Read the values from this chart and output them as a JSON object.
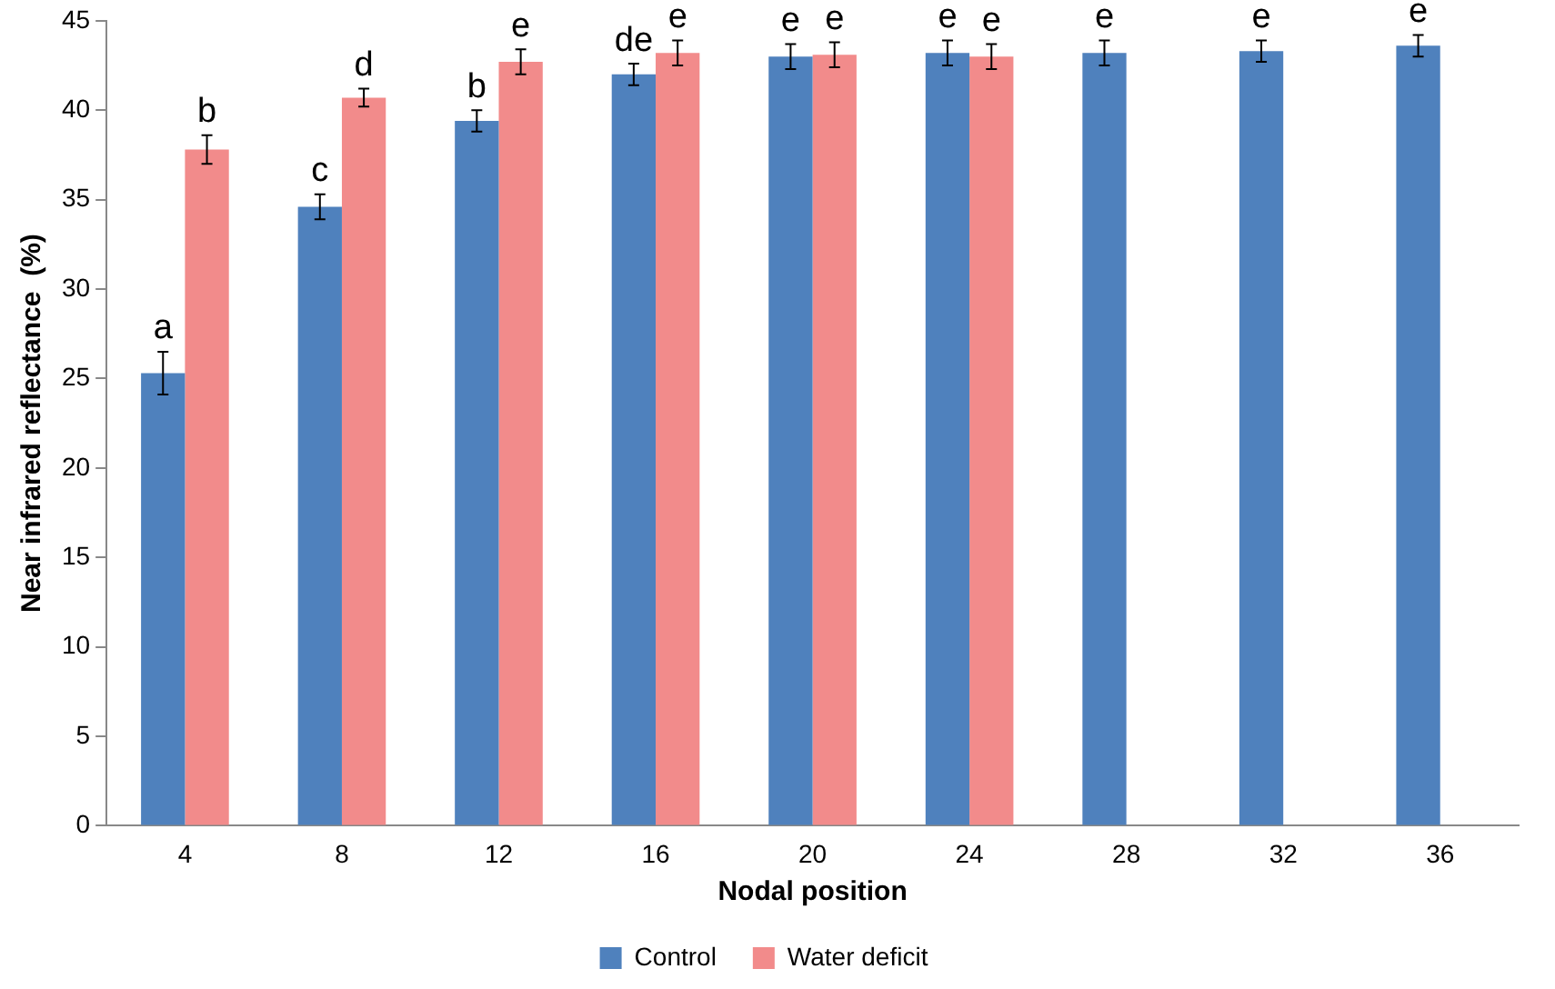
{
  "chart_data": {
    "type": "bar",
    "xlabel": "Nodal position",
    "ylabel": "Near infrared reflectance  (%)",
    "categories": [
      "4",
      "8",
      "12",
      "16",
      "20",
      "24",
      "28",
      "32",
      "36"
    ],
    "series": [
      {
        "name": "Control",
        "color": "#4f81bd",
        "values": [
          25.3,
          34.6,
          39.4,
          42.0,
          43.0,
          43.2,
          43.2,
          43.3,
          43.6
        ],
        "errors": [
          1.2,
          0.7,
          0.6,
          0.6,
          0.7,
          0.7,
          0.7,
          0.6,
          0.6
        ]
      },
      {
        "name": "Water deficit",
        "color": "#f28b8b",
        "values": [
          37.8,
          40.7,
          42.7,
          43.2,
          43.1,
          43.0,
          null,
          null,
          null
        ],
        "errors": [
          0.8,
          0.5,
          0.7,
          0.7,
          0.7,
          0.7,
          null,
          null,
          null
        ]
      }
    ],
    "ylim": [
      0,
      45
    ],
    "yticks": [
      0,
      5,
      10,
      15,
      20,
      25,
      30,
      35,
      40,
      45
    ],
    "grid": false,
    "legend": "bottom",
    "annotations": [
      {
        "text": "a",
        "x": "4",
        "y": 25.3
      },
      {
        "text": "b",
        "x": "4",
        "y": 37.8
      },
      {
        "text": "c",
        "x": "8",
        "y": 34.6
      },
      {
        "text": "d",
        "x": "8",
        "y": 40.7
      },
      {
        "text": "b",
        "x": "12",
        "y": 39.4
      },
      {
        "text": "e",
        "x": "12",
        "y": 42.7
      },
      {
        "text": "de",
        "x": "16",
        "y": 42.0
      },
      {
        "text": "e",
        "x": "16",
        "y": 43.2
      },
      {
        "text": "e",
        "x": "20",
        "y": 43.0
      },
      {
        "text": "e",
        "x": "20",
        "y": 43.1
      },
      {
        "text": "e",
        "x": "24",
        "y": 43.2
      },
      {
        "text": "e",
        "x": "24",
        "y": 43.0
      },
      {
        "text": "e",
        "x": "28",
        "y": 43.2
      },
      {
        "text": "e",
        "x": "32",
        "y": 43.3
      },
      {
        "text": "e",
        "x": "36",
        "y": 43.6
      }
    ]
  }
}
